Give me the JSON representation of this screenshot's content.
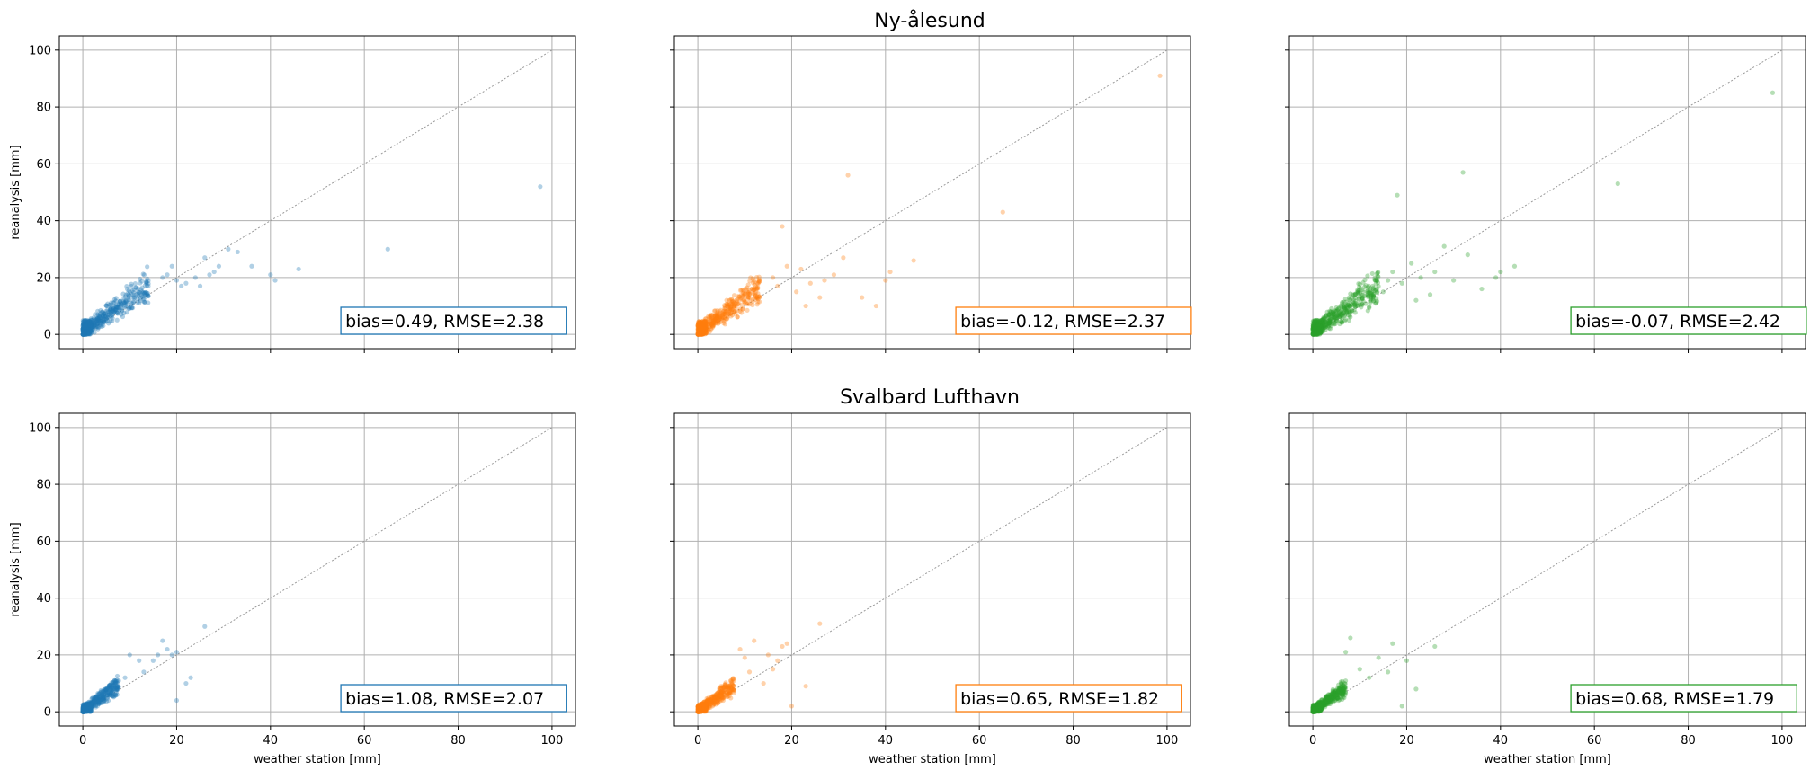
{
  "figure": {
    "rows": [
      {
        "title": "Ny-ålesund"
      },
      {
        "title": "Svalbard Lufthavn"
      }
    ],
    "xlabel": "weather station [mm]",
    "ylabel": "reanalysis [mm]",
    "ticks": [
      "0",
      "20",
      "40",
      "60",
      "80",
      "100"
    ]
  },
  "chart_data": [
    {
      "type": "scatter",
      "title": "Ny-ålesund",
      "row": 0,
      "col": 0,
      "xlabel": "",
      "ylabel": "reanalysis [mm]",
      "xlim": [
        -5,
        105
      ],
      "ylim": [
        -5,
        105
      ],
      "grid": true,
      "color": "#1f77b4",
      "annotation": "bias=0.49,   RMSE=2.38",
      "spread": 1.0,
      "points": [
        [
          97.5,
          52
        ],
        [
          65,
          30
        ],
        [
          46,
          23
        ],
        [
          41,
          19
        ],
        [
          40,
          21
        ],
        [
          36,
          24
        ],
        [
          33,
          29
        ],
        [
          31,
          30
        ],
        [
          29,
          24
        ],
        [
          28,
          22
        ],
        [
          27,
          21
        ],
        [
          26,
          27
        ],
        [
          25,
          17
        ],
        [
          24,
          20
        ],
        [
          22,
          18
        ],
        [
          21,
          17
        ],
        [
          20,
          19
        ],
        [
          19,
          24
        ],
        [
          18,
          21
        ],
        [
          17,
          20
        ]
      ]
    },
    {
      "type": "scatter",
      "title": "",
      "row": 0,
      "col": 1,
      "xlim": [
        -5,
        105
      ],
      "ylim": [
        -5,
        105
      ],
      "grid": true,
      "color": "#ff7f0e",
      "annotation": "bias=-0.12,   RMSE=2.37",
      "spread": 0.95,
      "points": [
        [
          98.5,
          91
        ],
        [
          65,
          43
        ],
        [
          46,
          26
        ],
        [
          41,
          22
        ],
        [
          40,
          19
        ],
        [
          38,
          10
        ],
        [
          35,
          13
        ],
        [
          32,
          56
        ],
        [
          31,
          27
        ],
        [
          29,
          21
        ],
        [
          27,
          19
        ],
        [
          26,
          13
        ],
        [
          24,
          18
        ],
        [
          23,
          10
        ],
        [
          22,
          23
        ],
        [
          21,
          15
        ],
        [
          19,
          24
        ],
        [
          18,
          38
        ],
        [
          17,
          17
        ],
        [
          16,
          20
        ]
      ]
    },
    {
      "type": "scatter",
      "title": "",
      "row": 0,
      "col": 2,
      "xlim": [
        -5,
        105
      ],
      "ylim": [
        -5,
        105
      ],
      "grid": true,
      "color": "#2ca02c",
      "annotation": "bias=-0.07,   RMSE=2.42",
      "spread": 1.0,
      "points": [
        [
          98,
          85
        ],
        [
          65,
          53
        ],
        [
          43,
          24
        ],
        [
          40,
          22
        ],
        [
          39,
          20
        ],
        [
          36,
          16
        ],
        [
          33,
          28
        ],
        [
          32,
          57
        ],
        [
          30,
          19
        ],
        [
          28,
          31
        ],
        [
          26,
          22
        ],
        [
          25,
          14
        ],
        [
          23,
          20
        ],
        [
          22,
          12
        ],
        [
          21,
          25
        ],
        [
          19,
          18
        ],
        [
          18,
          49
        ],
        [
          17,
          22
        ],
        [
          16,
          19
        ],
        [
          15,
          15
        ]
      ]
    },
    {
      "type": "scatter",
      "title": "Svalbard Lufthavn",
      "row": 1,
      "col": 0,
      "xlabel": "weather station [mm]",
      "ylabel": "reanalysis [mm]",
      "xlim": [
        -5,
        105
      ],
      "ylim": [
        -5,
        105
      ],
      "grid": true,
      "color": "#1f77b4",
      "annotation": "bias=1.08,   RMSE=2.07",
      "spread": 0.55,
      "points": [
        [
          26,
          30
        ],
        [
          23,
          12
        ],
        [
          22,
          10
        ],
        [
          20,
          21
        ],
        [
          20,
          4
        ],
        [
          19,
          20
        ],
        [
          18,
          22
        ],
        [
          17,
          25
        ],
        [
          16,
          20
        ],
        [
          15,
          18
        ],
        [
          13,
          14
        ],
        [
          12,
          18
        ],
        [
          10,
          20
        ],
        [
          9,
          12
        ]
      ]
    },
    {
      "type": "scatter",
      "title": "",
      "row": 1,
      "col": 1,
      "xlabel": "weather station [mm]",
      "xlim": [
        -5,
        105
      ],
      "ylim": [
        -5,
        105
      ],
      "grid": true,
      "color": "#ff7f0e",
      "annotation": "bias=0.65,   RMSE=1.82",
      "spread": 0.55,
      "points": [
        [
          26,
          31
        ],
        [
          23,
          9
        ],
        [
          20,
          2
        ],
        [
          19,
          24
        ],
        [
          18,
          23
        ],
        [
          17,
          18
        ],
        [
          16,
          15
        ],
        [
          15,
          20
        ],
        [
          14,
          10
        ],
        [
          12,
          25
        ],
        [
          11,
          14
        ],
        [
          10,
          19
        ],
        [
          9,
          22
        ]
      ]
    },
    {
      "type": "scatter",
      "title": "",
      "row": 1,
      "col": 2,
      "xlabel": "weather station [mm]",
      "xlim": [
        -5,
        105
      ],
      "ylim": [
        -5,
        105
      ],
      "grid": true,
      "color": "#2ca02c",
      "annotation": "bias=0.68,   RMSE=1.79",
      "spread": 0.5,
      "points": [
        [
          26,
          23
        ],
        [
          22,
          8
        ],
        [
          20,
          18
        ],
        [
          19,
          2
        ],
        [
          17,
          24
        ],
        [
          16,
          14
        ],
        [
          14,
          19
        ],
        [
          12,
          12
        ],
        [
          10,
          15
        ],
        [
          8,
          26
        ],
        [
          7,
          21
        ]
      ]
    }
  ]
}
